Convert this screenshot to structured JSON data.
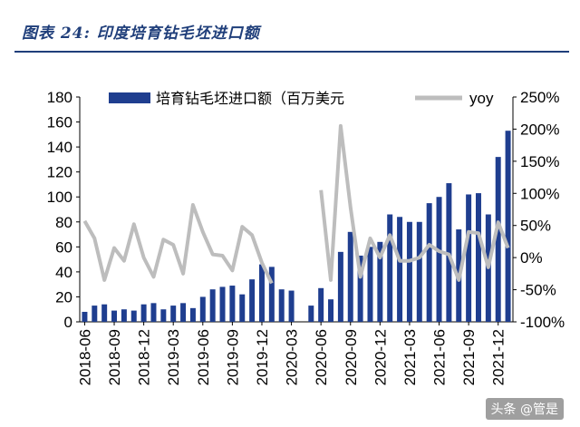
{
  "header": {
    "title": "图表 24:  印度培育钻毛坯进口额"
  },
  "watermark": "头条 @管是",
  "chart_data": {
    "type": "bar",
    "x": [
      "2018-06",
      "2018-07",
      "2018-08",
      "2018-09",
      "2018-10",
      "2018-11",
      "2018-12",
      "2019-01",
      "2019-02",
      "2019-03",
      "2019-04",
      "2019-05",
      "2019-06",
      "2019-07",
      "2019-08",
      "2019-09",
      "2019-10",
      "2019-11",
      "2019-12",
      "2020-01",
      "2020-02",
      "2020-03",
      "2020-04",
      "2020-05",
      "2020-06",
      "2020-07",
      "2020-08",
      "2020-09",
      "2020-10",
      "2020-11",
      "2020-12",
      "2021-01",
      "2021-02",
      "2021-03",
      "2021-04",
      "2021-05",
      "2021-06",
      "2021-07",
      "2021-08",
      "2021-09",
      "2021-10",
      "2021-11",
      "2021-12",
      "2022-01"
    ],
    "tick_labels": [
      "2018-06",
      "2018-09",
      "2018-12",
      "2019-03",
      "2019-06",
      "2019-09",
      "2019-12",
      "2020-03",
      "2020-06",
      "2020-09",
      "2020-12",
      "2021-03",
      "2021-06",
      "2021-09",
      "2021-12"
    ],
    "series": [
      {
        "name": "培育钻毛坯进口额（百万美元",
        "type": "bar",
        "axis": "left",
        "color": "#1f3e8f",
        "values": [
          8,
          13,
          14,
          9,
          10,
          9,
          14,
          15,
          10,
          13,
          15,
          11,
          20,
          26,
          28,
          29,
          22,
          34,
          46,
          44,
          26,
          25,
          null,
          13,
          27,
          18,
          56,
          72,
          53,
          60,
          64,
          86,
          84,
          80,
          80,
          95,
          100,
          111,
          74,
          102,
          103,
          86,
          132,
          153
        ]
      },
      {
        "name": "yoy",
        "type": "line",
        "axis": "right",
        "color": "#bdbdbd",
        "values": [
          0.57,
          0.3,
          -0.35,
          0.15,
          -0.05,
          0.52,
          0.0,
          -0.3,
          0.28,
          0.2,
          -0.25,
          0.82,
          0.4,
          0.05,
          0.03,
          -0.2,
          0.48,
          0.35,
          -0.08,
          -0.4,
          null,
          null,
          null,
          null,
          1.05,
          -0.35,
          2.05,
          0.78,
          -0.3,
          0.3,
          0.0,
          0.35,
          -0.05,
          -0.05,
          0.0,
          0.2,
          0.1,
          0.05,
          -0.35,
          0.4,
          0.38,
          -0.15,
          0.55,
          0.15
        ]
      }
    ],
    "y_left": {
      "ylim": [
        0,
        180
      ],
      "ticks": [
        0,
        20,
        40,
        60,
        80,
        100,
        120,
        140,
        160,
        180
      ]
    },
    "y_right": {
      "ylim": [
        -1,
        2.5
      ],
      "ticks": [
        "-100%",
        "-50%",
        "0%",
        "50%",
        "100%",
        "150%",
        "200%",
        "250%"
      ]
    },
    "legend": {
      "position": "top",
      "bar_label": "培育钻毛坯进口额（百万美元",
      "line_label": "yoy"
    },
    "grid": false
  }
}
